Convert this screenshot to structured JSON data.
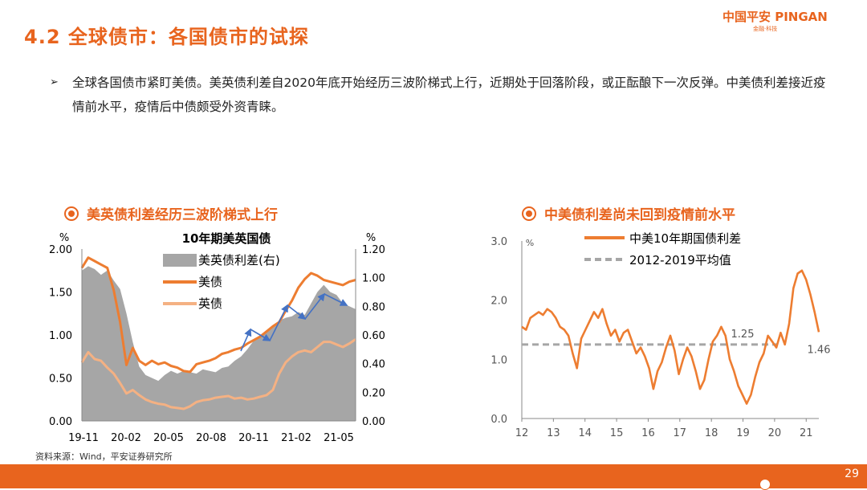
{
  "header": {
    "title": "4.2 全球债市：各国债市的试探",
    "logo_main": "中国平安 PINGAN",
    "logo_sub": "金融·科技"
  },
  "bullet": {
    "arrow": "➢",
    "text": "全球各国债市紧盯美债。美英债利差自2020年底开始经历三波阶梯式上行，近期处于回落阶段，或正酝酿下一次反弹。中美债利差接近疫情前水平，疫情后中债颇受外资青睐。"
  },
  "footer": {
    "source": "资料来源：Wind，平安证券研究所",
    "page": "29"
  },
  "colors": {
    "accent": "#e8641e",
    "us": "#ed7d31",
    "uk": "#f4b183",
    "spread": "#a6a6a6",
    "avg": "#a6a6a6"
  },
  "chart_data": [
    {
      "type": "area+line",
      "heading": "美英债利差经历三波阶梯式上行",
      "title": "10年期美英国债",
      "left_unit": "%",
      "right_unit": "%",
      "ylim": [
        0,
        2.0
      ],
      "y2lim": [
        0,
        1.2
      ],
      "yticks": [
        "0.00",
        "0.50",
        "1.00",
        "1.50",
        "2.00"
      ],
      "y2ticks": [
        "0.00",
        "0.20",
        "0.40",
        "0.60",
        "0.80",
        "1.00",
        "1.20"
      ],
      "xticks": [
        "19-11",
        "20-02",
        "20-05",
        "20-08",
        "20-11",
        "21-02",
        "21-05"
      ],
      "legend": [
        "美英债利差(右)",
        "美债",
        "英债"
      ],
      "series": [
        {
          "name": "美英债利差(右)",
          "axis": "right",
          "type": "area",
          "values": [
            1.05,
            1.08,
            1.06,
            1.02,
            1.05,
            0.98,
            0.92,
            0.75,
            0.55,
            0.38,
            0.32,
            0.3,
            0.28,
            0.32,
            0.35,
            0.33,
            0.35,
            0.34,
            0.33,
            0.36,
            0.35,
            0.34,
            0.37,
            0.38,
            0.42,
            0.45,
            0.5,
            0.56,
            0.6,
            0.62,
            0.65,
            0.7,
            0.72,
            0.73,
            0.76,
            0.74,
            0.82,
            0.9,
            0.95,
            0.9,
            0.88,
            0.82,
            0.8,
            0.78
          ]
        },
        {
          "name": "美债",
          "axis": "left",
          "type": "line",
          "values": [
            1.78,
            1.9,
            1.86,
            1.82,
            1.78,
            1.52,
            1.15,
            0.65,
            0.85,
            0.7,
            0.65,
            0.7,
            0.66,
            0.68,
            0.64,
            0.62,
            0.58,
            0.57,
            0.66,
            0.68,
            0.7,
            0.73,
            0.78,
            0.8,
            0.83,
            0.85,
            0.9,
            0.94,
            0.98,
            1.04,
            1.1,
            1.15,
            1.28,
            1.4,
            1.55,
            1.65,
            1.72,
            1.69,
            1.64,
            1.62,
            1.6,
            1.58,
            1.62,
            1.64
          ]
        },
        {
          "name": "英债",
          "axis": "left",
          "type": "line",
          "values": [
            0.68,
            0.8,
            0.72,
            0.7,
            0.62,
            0.55,
            0.44,
            0.32,
            0.36,
            0.3,
            0.25,
            0.22,
            0.2,
            0.19,
            0.16,
            0.15,
            0.14,
            0.17,
            0.22,
            0.24,
            0.25,
            0.27,
            0.28,
            0.29,
            0.26,
            0.27,
            0.25,
            0.26,
            0.28,
            0.3,
            0.36,
            0.55,
            0.68,
            0.75,
            0.8,
            0.82,
            0.8,
            0.86,
            0.92,
            0.92,
            0.89,
            0.86,
            0.9,
            0.95
          ]
        }
      ],
      "wave_arrows": 3
    },
    {
      "type": "line",
      "heading": "中美债利差尚未回到疫情前水平",
      "unit": "%",
      "ylim": [
        0,
        3.0
      ],
      "yticks": [
        "0.0",
        "1.0",
        "2.0",
        "3.0"
      ],
      "xticks": [
        "12",
        "13",
        "14",
        "15",
        "16",
        "17",
        "18",
        "19",
        "20",
        "21"
      ],
      "xrange": [
        2012,
        2021.4
      ],
      "legend": [
        "中美10年期国债利差",
        "2012-2019平均值"
      ],
      "avg_value": 1.25,
      "avg_label": "1.25",
      "last_label": "1.46",
      "series": [
        {
          "name": "中美10年期国债利差",
          "values": [
            1.55,
            1.5,
            1.7,
            1.75,
            1.8,
            1.75,
            1.85,
            1.8,
            1.7,
            1.55,
            1.5,
            1.4,
            1.1,
            0.85,
            1.35,
            1.5,
            1.65,
            1.8,
            1.7,
            1.85,
            1.6,
            1.4,
            1.5,
            1.3,
            1.45,
            1.5,
            1.3,
            1.1,
            1.2,
            1.05,
            0.85,
            0.5,
            0.8,
            0.95,
            1.2,
            1.4,
            1.15,
            0.75,
            1.0,
            1.2,
            1.05,
            0.8,
            0.5,
            0.65,
            1.0,
            1.3,
            1.4,
            1.55,
            1.4,
            1.0,
            0.8,
            0.55,
            0.4,
            0.25,
            0.4,
            0.7,
            0.95,
            1.1,
            1.4,
            1.3,
            1.2,
            1.45,
            1.25,
            1.6,
            2.2,
            2.45,
            2.5,
            2.35,
            2.1,
            1.8,
            1.46
          ]
        }
      ]
    }
  ]
}
